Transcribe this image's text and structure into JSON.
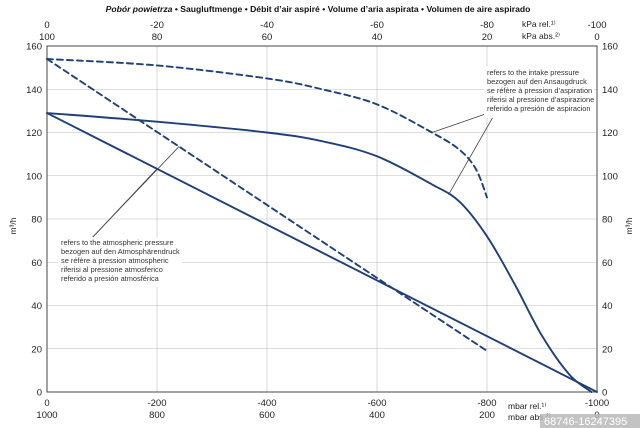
{
  "chart_data": {
    "type": "line",
    "title": {
      "lead": "Pobór powietrza",
      "rest": " • Saugluftmenge • Débit d’air aspiré • Volume d’aria aspirata • Volumen de aire aspirado"
    },
    "ylabel": "m³/h",
    "y_ticks": [
      "0",
      "20",
      "40",
      "60",
      "80",
      "100",
      "120",
      "140",
      "160"
    ],
    "ylim": [
      0,
      160
    ],
    "x_axes": {
      "bottom_rel": {
        "ticks": [
          "0",
          "-200",
          "-400",
          "-600",
          "-800",
          "-1000"
        ],
        "unit": "mbar rel.¹⁾"
      },
      "bottom_abs": {
        "ticks": [
          "1000",
          "800",
          "600",
          "400",
          "200",
          "0"
        ],
        "unit": "mbar abs.²⁾"
      },
      "top_rel": {
        "ticks": [
          "0",
          "-20",
          "-40",
          "-60",
          "-80",
          "-100"
        ],
        "unit": "kPa rel.¹⁾"
      },
      "top_abs": {
        "ticks": [
          "100",
          "80",
          "60",
          "40",
          "20",
          "0"
        ],
        "unit": "kPa abs.²⁾"
      }
    },
    "xlim": [
      0,
      -1000
    ],
    "series": [
      {
        "name": "atmospheric_solid",
        "style": "solid",
        "x": [
          0,
          -1000
        ],
        "y": [
          129,
          0
        ]
      },
      {
        "name": "atmospheric_dashed",
        "style": "dashed",
        "x": [
          0,
          -800
        ],
        "y": [
          154,
          19
        ]
      },
      {
        "name": "intake_solid",
        "style": "solid",
        "x": [
          0,
          -200,
          -400,
          -500,
          -600,
          -700,
          -750,
          -800,
          -850,
          -900,
          -950,
          -990
        ],
        "y": [
          129,
          125,
          120,
          116,
          109,
          96,
          88,
          72,
          50,
          26,
          8,
          0
        ]
      },
      {
        "name": "intake_dashed",
        "style": "dashed",
        "x": [
          0,
          -200,
          -400,
          -500,
          -600,
          -700,
          -750,
          -780,
          -800
        ],
        "y": [
          154,
          151,
          145,
          140,
          133,
          120,
          112,
          103,
          90
        ]
      }
    ],
    "annotations": {
      "intake": [
        "refers to the intake pressure",
        "bezogen auf den Ansaugdruck",
        "se réfère à pression d’aspiration",
        "riferisi al pressione d’aspirazione",
        "referido a presión de aspiracion"
      ],
      "atmospheric": [
        "refers to the atmospheric pressure",
        "bezogen auf den Atmosphärendruck",
        "se réfère à pression atmospheric",
        "riferisi al pressione atmosferico",
        "referido a presión atmosférica"
      ]
    }
  },
  "watermark": "68746-16247395"
}
